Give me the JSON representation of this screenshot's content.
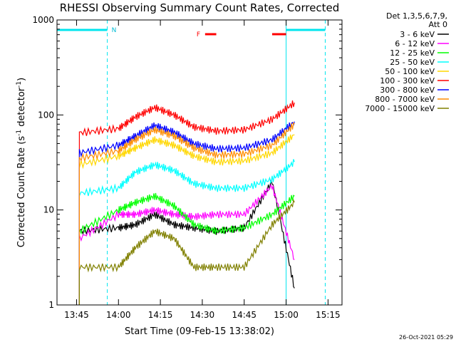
{
  "chart_data": {
    "type": "line",
    "title": "RHESSI Observing Summary Count Rates, Corrected",
    "xlabel": "Start Time (09-Feb-15 13:38:02)",
    "ylabel": "Corrected Count Rate (s",
    "ylabel_sup": "-1",
    "ylabel_tail": " detector",
    "ylabel_end": ")",
    "yscale": "log",
    "ylim": [
      1,
      1000
    ],
    "xlim": [
      "13:38",
      "15:20"
    ],
    "x_ticks": [
      "13:45",
      "14:00",
      "14:15",
      "14:30",
      "14:45",
      "15:00",
      "15:15"
    ],
    "y_ticks": [
      "1",
      "10",
      "100",
      "1000"
    ],
    "timestamp": "26-Oct-2021 05:29",
    "legend_header": [
      "Det 1,3,5,6,7,9,",
      "Att 0"
    ],
    "annotations": {
      "night": "N",
      "flare": "F"
    },
    "night_intervals": [
      [
        "13:38",
        "13:56"
      ],
      [
        "15:00",
        "15:14"
      ]
    ],
    "flare_intervals": [
      [
        "14:31",
        "14:35"
      ],
      [
        "14:55",
        "15:00"
      ]
    ],
    "data_start": "13:46",
    "data_end": "15:03",
    "x": [
      "13:46",
      "14:00",
      "14:06",
      "14:13",
      "14:20",
      "14:27",
      "14:35",
      "14:45",
      "14:55",
      "15:03"
    ],
    "series": [
      {
        "name": "3 - 6 keV",
        "color": "#000000",
        "values": [
          6,
          6.5,
          7,
          9,
          7,
          6.5,
          6,
          6.5,
          20,
          1.5
        ]
      },
      {
        "name": "6 - 12 keV",
        "color": "#ff00ff",
        "values": [
          5,
          9,
          9,
          10,
          9,
          8.5,
          9,
          9,
          18,
          3
        ]
      },
      {
        "name": "12 - 25 keV",
        "color": "#00ff00",
        "values": [
          6,
          10,
          12,
          14,
          11,
          7,
          6,
          6.5,
          9,
          14
        ]
      },
      {
        "name": "25 - 50 keV",
        "color": "#00ffff",
        "values": [
          15,
          17,
          25,
          30,
          26,
          19,
          17,
          17,
          21,
          32
        ]
      },
      {
        "name": "50 - 100 keV",
        "color": "#ffd700",
        "values": [
          30,
          37,
          45,
          55,
          48,
          37,
          32,
          33,
          40,
          62
        ]
      },
      {
        "name": "100 - 300 keV",
        "color": "#ff0000",
        "values": [
          65,
          72,
          95,
          120,
          100,
          75,
          68,
          70,
          90,
          135
        ]
      },
      {
        "name": "300 - 800 keV",
        "color": "#0000ff",
        "values": [
          40,
          48,
          60,
          78,
          66,
          50,
          44,
          45,
          55,
          85
        ]
      },
      {
        "name": "800 - 7000 keV",
        "color": "#ff8c00",
        "values": [
          35,
          42,
          55,
          70,
          60,
          45,
          38,
          39,
          48,
          80
        ]
      },
      {
        "name": "7000 - 15000 keV",
        "color": "#808000",
        "values": [
          2.5,
          2.5,
          4,
          6,
          5,
          2.5,
          2.5,
          2.5,
          7,
          12
        ]
      }
    ]
  }
}
